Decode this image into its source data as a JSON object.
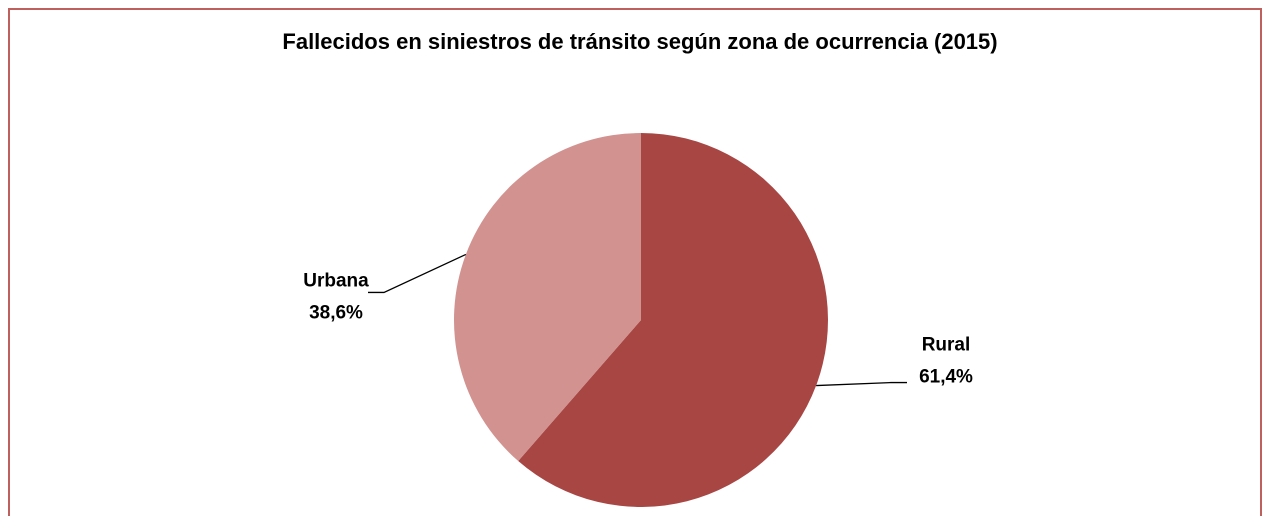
{
  "chart_data": {
    "type": "pie",
    "title": "Fallecidos en siniestros de tránsito según zona de ocurrencia (2015)",
    "categories": [
      "Rural",
      "Urbana"
    ],
    "values": [
      61.4,
      38.6
    ],
    "value_labels": [
      "61,4%",
      "38,6%"
    ],
    "colors": [
      "#a84644",
      "#d19290"
    ]
  }
}
